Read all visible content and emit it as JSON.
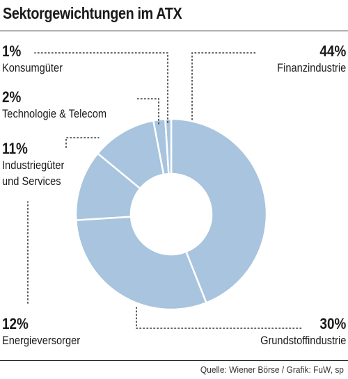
{
  "title": "Sektorgewichtungen im ATX",
  "source": "Quelle: Wiener Börse / Grafik: FuW, sp",
  "chart_data": {
    "type": "pie",
    "variant": "donut",
    "title": "Sektorgewichtungen im ATX",
    "unit": "%",
    "color": "#a8c4de",
    "slices": [
      {
        "label": "Finanzindustrie",
        "value": 44,
        "value_label": "44%"
      },
      {
        "label": "Grundstoffindustrie",
        "value": 30,
        "value_label": "30%"
      },
      {
        "label": "Energieversorger",
        "value": 12,
        "value_label": "12%"
      },
      {
        "label": "Industriegüter und Services",
        "value": 11,
        "value_label": "11%",
        "label_lines": [
          "Industriegüter",
          "und Services"
        ]
      },
      {
        "label": "Technologie & Telecom",
        "value": 2,
        "value_label": "2%"
      },
      {
        "label": "Konsumgüter",
        "value": 1,
        "value_label": "1%"
      }
    ]
  }
}
